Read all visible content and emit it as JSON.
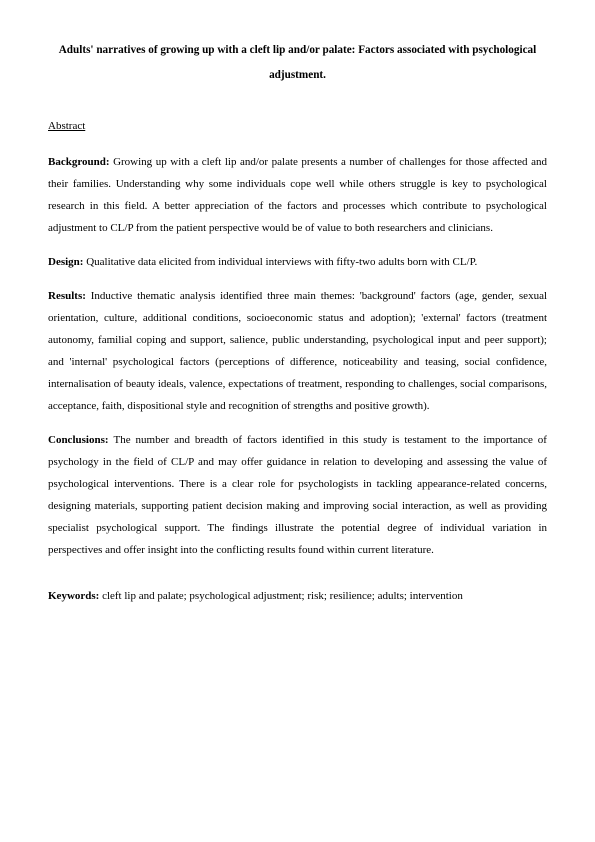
{
  "title": "Adults' narratives of growing up with a cleft lip and/or palate: Factors associated with psychological adjustment.",
  "abstract_heading": "Abstract",
  "background": {
    "label": "Background: ",
    "text": "Growing up with a cleft lip and/or palate presents a number of challenges for those affected and their families.  Understanding why some individuals cope well while others struggle is key to psychological research in this field.  A better appreciation of the factors and processes which contribute to psychological adjustment to CL/P from the patient perspective would be of value to both researchers and clinicians."
  },
  "design": {
    "label": "Design: ",
    "text": "Qualitative data elicited from individual interviews with fifty-two adults born with CL/P."
  },
  "results": {
    "label": "Results: ",
    "text": "Inductive thematic analysis identified three main themes: 'background' factors (age, gender, sexual orientation, culture, additional conditions, socioeconomic status and adoption); 'external' factors (treatment autonomy, familial coping and support, salience, public understanding, psychological input and peer support); and 'internal' psychological factors (perceptions of difference, noticeability and teasing, social confidence, internalisation of beauty ideals, valence, expectations of treatment, responding to challenges, social comparisons, acceptance, faith, dispositional style and recognition of strengths and positive growth)."
  },
  "conclusions": {
    "label": "Conclusions: ",
    "text": "The number and breadth of factors identified in this study is testament to the importance of psychology in the field of CL/P and may offer guidance in relation to developing and assessing the value of psychological interventions.  There is a clear role for psychologists in tackling appearance-related concerns, designing materials, supporting patient decision making and improving social interaction, as well as providing specialist psychological support.  The findings illustrate the potential degree of individual variation in perspectives and offer insight into the conflicting results found within current literature."
  },
  "keywords": {
    "label": "Keywords: ",
    "text": "cleft lip and palate; psychological adjustment; risk; resilience; adults; intervention"
  }
}
